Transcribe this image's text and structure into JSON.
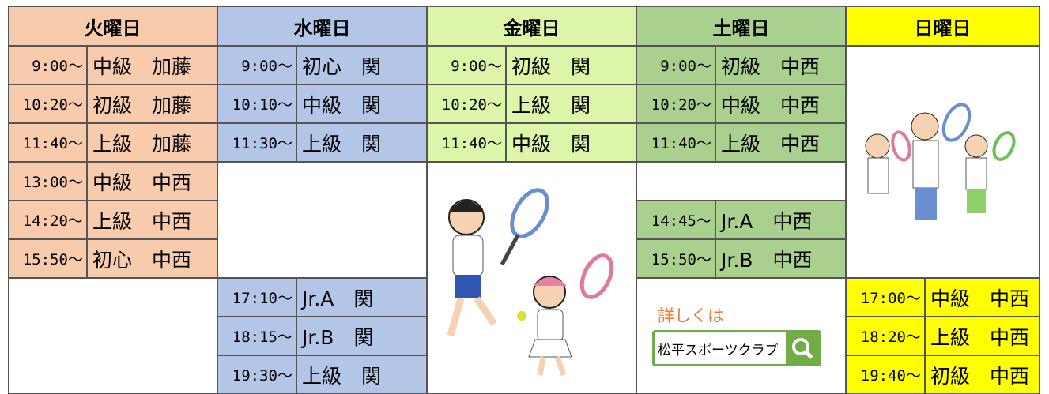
{
  "days": [
    {
      "name": "火曜日",
      "color": "#f8cbad",
      "slots": [
        {
          "time": "9:00～",
          "name": "中級　加藤"
        },
        {
          "time": "10:20～",
          "name": "初級　加藤"
        },
        {
          "time": "11:40～",
          "name": "上級　加藤"
        },
        {
          "time": "13:00～",
          "name": "中級　中西"
        },
        {
          "time": "14:20～",
          "name": "上級　中西"
        },
        {
          "time": "15:50～",
          "name": "初心　中西"
        },
        null,
        null,
        null
      ]
    },
    {
      "name": "水曜日",
      "color": "#b4c6e7",
      "slots": [
        {
          "time": "9:00～",
          "name": "初心　関"
        },
        {
          "time": "10:10～",
          "name": "中級　関"
        },
        {
          "time": "11:30～",
          "name": "上級　関"
        },
        null,
        null,
        null,
        {
          "time": "17:10～",
          "name": "Jr.A　関"
        },
        {
          "time": "18:15～",
          "name": "Jr.B　関"
        },
        {
          "time": "19:30～",
          "name": "上級　関"
        }
      ]
    },
    {
      "name": "金曜日",
      "color": "#dcf5a8",
      "slots": [
        {
          "time": "9:00～",
          "name": "初級　関"
        },
        {
          "time": "10:20～",
          "name": "上級　関"
        },
        {
          "time": "11:40～",
          "name": "中級　関"
        },
        null,
        null,
        null,
        null,
        null,
        null
      ]
    },
    {
      "name": "土曜日",
      "color": "#a9d08e",
      "slots": [
        {
          "time": "9:00～",
          "name": "初級　中西"
        },
        {
          "time": "10:20～",
          "name": "中級　中西"
        },
        {
          "time": "11:40～",
          "name": "上級　中西"
        },
        null,
        {
          "time": "14:45～",
          "name": "Jr.A　中西"
        },
        {
          "time": "15:50～",
          "name": "Jr.B　中西"
        },
        null,
        null,
        null
      ]
    },
    {
      "name": "日曜日",
      "color": "#ffff00",
      "slots": [
        null,
        null,
        null,
        null,
        null,
        null,
        {
          "time": "17:00～",
          "name": "中級　中西"
        },
        {
          "time": "18:20～",
          "name": "上級　中西"
        },
        {
          "time": "19:40～",
          "name": "初級　中西"
        }
      ]
    }
  ],
  "link": {
    "caption": "詳しくは",
    "label": "松平スポーツクラブ"
  }
}
